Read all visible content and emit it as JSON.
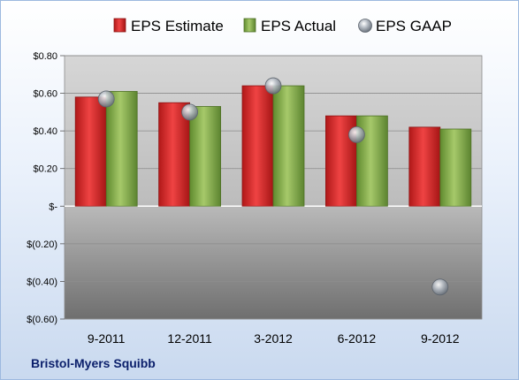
{
  "footer": {
    "company": "Bristol-Myers Squibb"
  },
  "chart_data": {
    "type": "bar",
    "categories": [
      "9-2011",
      "12-2011",
      "3-2012",
      "6-2012",
      "9-2012"
    ],
    "series": [
      {
        "name": "EPS Estimate",
        "type": "bar",
        "color": "#d42a2a",
        "values": [
          0.58,
          0.55,
          0.64,
          0.48,
          0.42
        ]
      },
      {
        "name": "EPS Actual",
        "type": "bar",
        "color": "#7fa34a",
        "values": [
          0.61,
          0.53,
          0.64,
          0.48,
          0.41
        ]
      },
      {
        "name": "EPS GAAP",
        "type": "marker",
        "color": "#9aa3ad",
        "values": [
          0.57,
          0.5,
          0.64,
          0.38,
          -0.43
        ]
      }
    ],
    "yticks": [
      {
        "value": 0.8,
        "label": "$0.80"
      },
      {
        "value": 0.6,
        "label": "$0.60"
      },
      {
        "value": 0.4,
        "label": "$0.40"
      },
      {
        "value": 0.2,
        "label": "$0.20"
      },
      {
        "value": 0.0,
        "label": "$-"
      },
      {
        "value": -0.2,
        "label": "$(0.20)"
      },
      {
        "value": -0.4,
        "label": "$(0.40)"
      },
      {
        "value": -0.6,
        "label": "$(0.60)"
      }
    ],
    "ylim": [
      -0.6,
      0.8
    ],
    "grid": true,
    "legend": "top"
  }
}
